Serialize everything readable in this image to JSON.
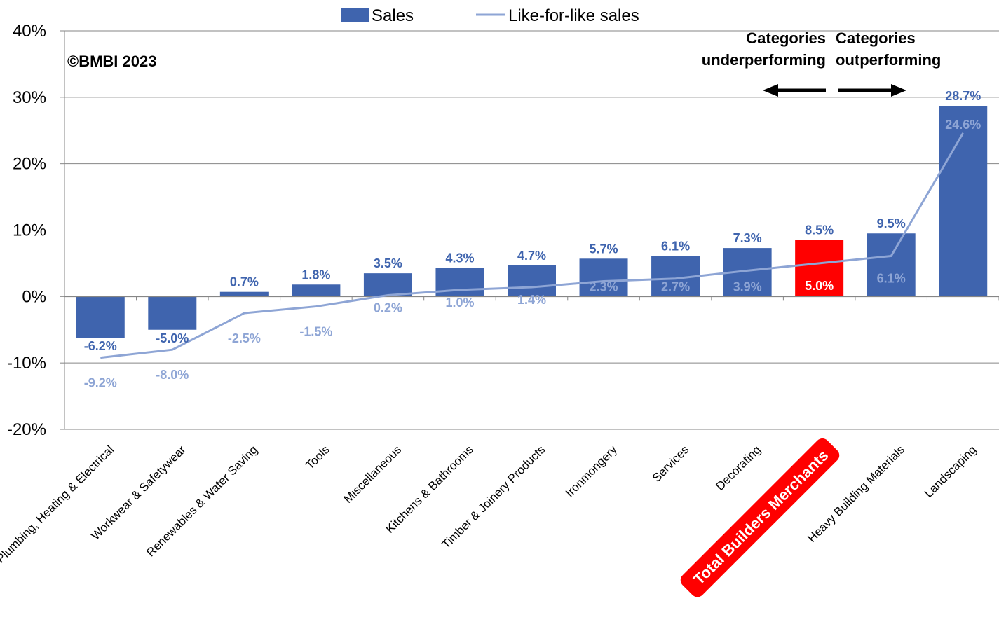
{
  "chart_data": {
    "type": "bar",
    "copyright": "©BMBI 2023",
    "categories": [
      "Plumbing, Heating & Electrical",
      "Workwear & Safetywear",
      "Renewables & Water Saving",
      "Tools",
      "Miscellaneous",
      "Kitchens & Bathrooms",
      "Timber & Joinery Products",
      "Ironmongery",
      "Services",
      "Decorating",
      "Total Builders Merchants",
      "Heavy Building Materials",
      "Landscaping"
    ],
    "series": [
      {
        "name": "Sales",
        "type": "bar",
        "values": [
          -6.2,
          -5.0,
          0.7,
          1.8,
          3.5,
          4.3,
          4.7,
          5.7,
          6.1,
          7.3,
          8.5,
          9.5,
          28.7
        ],
        "labels": [
          "-6.2%",
          "-5.0%",
          "0.7%",
          "1.8%",
          "3.5%",
          "4.3%",
          "4.7%",
          "5.7%",
          "6.1%",
          "7.3%",
          "8.5%",
          "9.5%",
          "28.7%"
        ]
      },
      {
        "name": "Like-for-like sales",
        "type": "line",
        "values": [
          -9.2,
          -8.0,
          -2.5,
          -1.5,
          0.2,
          1.0,
          1.4,
          2.3,
          2.7,
          3.9,
          5.0,
          6.1,
          24.6
        ],
        "labels": [
          "-9.2%",
          "-8.0%",
          "-2.5%",
          "-1.5%",
          "0.2%",
          "1.0%",
          "1.4%",
          "2.3%",
          "2.7%",
          "3.9%",
          "5.0%",
          "6.1%",
          "24.6%"
        ]
      }
    ],
    "ylim": [
      -20,
      40
    ],
    "yticks": [
      -20,
      -10,
      0,
      10,
      20,
      30,
      40
    ],
    "ytick_labels": [
      "-20%",
      "-10%",
      "0%",
      "10%",
      "20%",
      "30%",
      "40%"
    ],
    "highlight_category": "Total Builders Merchants",
    "annotations": {
      "left_line1": "Categories",
      "left_line2": "underperforming",
      "right_line1": "Categories",
      "right_line2": "outperforming"
    },
    "grid": true,
    "legend_position": "top"
  },
  "colors": {
    "sales": "#3F64AE",
    "lfl": "#8EA5D5",
    "highlight": "#FF0000",
    "grid": "#868686",
    "text": "#000000"
  }
}
